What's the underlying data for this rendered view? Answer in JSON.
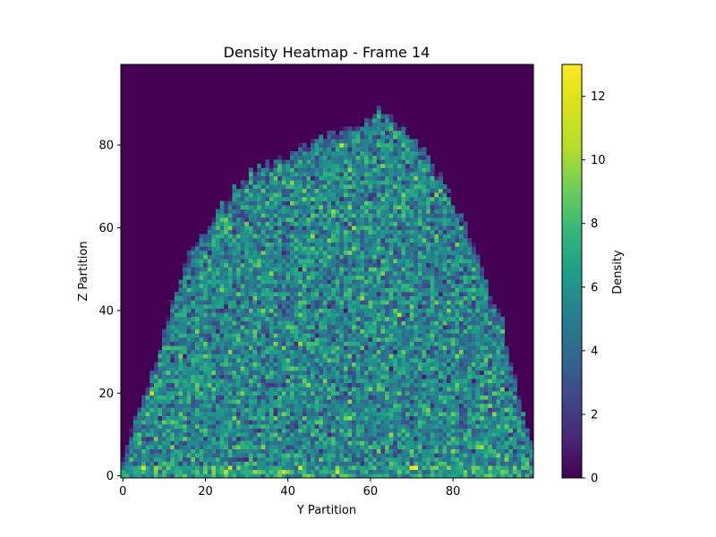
{
  "chart_data": {
    "type": "heatmap",
    "title": "Density Heatmap - Frame 14",
    "xlabel": "Y Partition",
    "ylabel": "Z Partition",
    "colorbar_label": "Density",
    "colormap": "viridis",
    "grid": false,
    "legend": "colorbar-right",
    "x_range": [
      0,
      99
    ],
    "y_range": [
      0,
      99
    ],
    "value_range": [
      0,
      13
    ],
    "x_ticks": [
      0,
      20,
      40,
      60,
      80
    ],
    "y_ticks": [
      0,
      20,
      40,
      60,
      80
    ],
    "colorbar_ticks": [
      0,
      2,
      4,
      6,
      8,
      10,
      12
    ],
    "n_cols": 100,
    "n_rows": 100,
    "mean_density_inside": 5.5,
    "noise_seed": 14,
    "boundary_profile": {
      "x": [
        0,
        2,
        5,
        8,
        10,
        13,
        15,
        18,
        20,
        22,
        24,
        26,
        28,
        30,
        33,
        36,
        40,
        44,
        48,
        52,
        56,
        58,
        60,
        62,
        64,
        66,
        68,
        70,
        72,
        74,
        76,
        78,
        80,
        82,
        84,
        86,
        88,
        90,
        92,
        94,
        96,
        98,
        99
      ],
      "z_top": [
        5,
        12,
        20,
        28,
        35,
        45,
        52,
        57,
        60,
        63,
        66,
        68,
        71,
        73,
        75,
        77,
        78,
        80,
        82,
        83,
        85,
        86,
        88,
        89,
        88,
        86,
        85,
        83,
        81,
        78,
        74,
        71,
        67,
        63,
        58,
        53,
        47,
        42,
        38,
        28,
        20,
        12,
        8
      ]
    },
    "bottom_row_high_values": [
      {
        "x": 5,
        "y": 2,
        "value": 12
      },
      {
        "x": 8,
        "y": 2,
        "value": 10
      },
      {
        "x": 25,
        "y": 1,
        "value": 11
      },
      {
        "x": 32,
        "y": 1,
        "value": 10
      },
      {
        "x": 39,
        "y": 1,
        "value": 11
      },
      {
        "x": 43,
        "y": 2,
        "value": 12
      },
      {
        "x": 52,
        "y": 1,
        "value": 11
      },
      {
        "x": 70,
        "y": 2,
        "value": 12
      },
      {
        "x": 71,
        "y": 2,
        "value": 13
      }
    ],
    "hotspots": [
      {
        "x": 25,
        "y": 69,
        "value": 12
      },
      {
        "x": 20,
        "y": 60,
        "value": 11
      },
      {
        "x": 7,
        "y": 20,
        "value": 11
      },
      {
        "x": 53,
        "y": 80,
        "value": 11
      },
      {
        "x": 67,
        "y": 39,
        "value": 11
      },
      {
        "x": 46,
        "y": 58,
        "value": 10
      },
      {
        "x": 58,
        "y": 43,
        "value": 10
      }
    ]
  }
}
